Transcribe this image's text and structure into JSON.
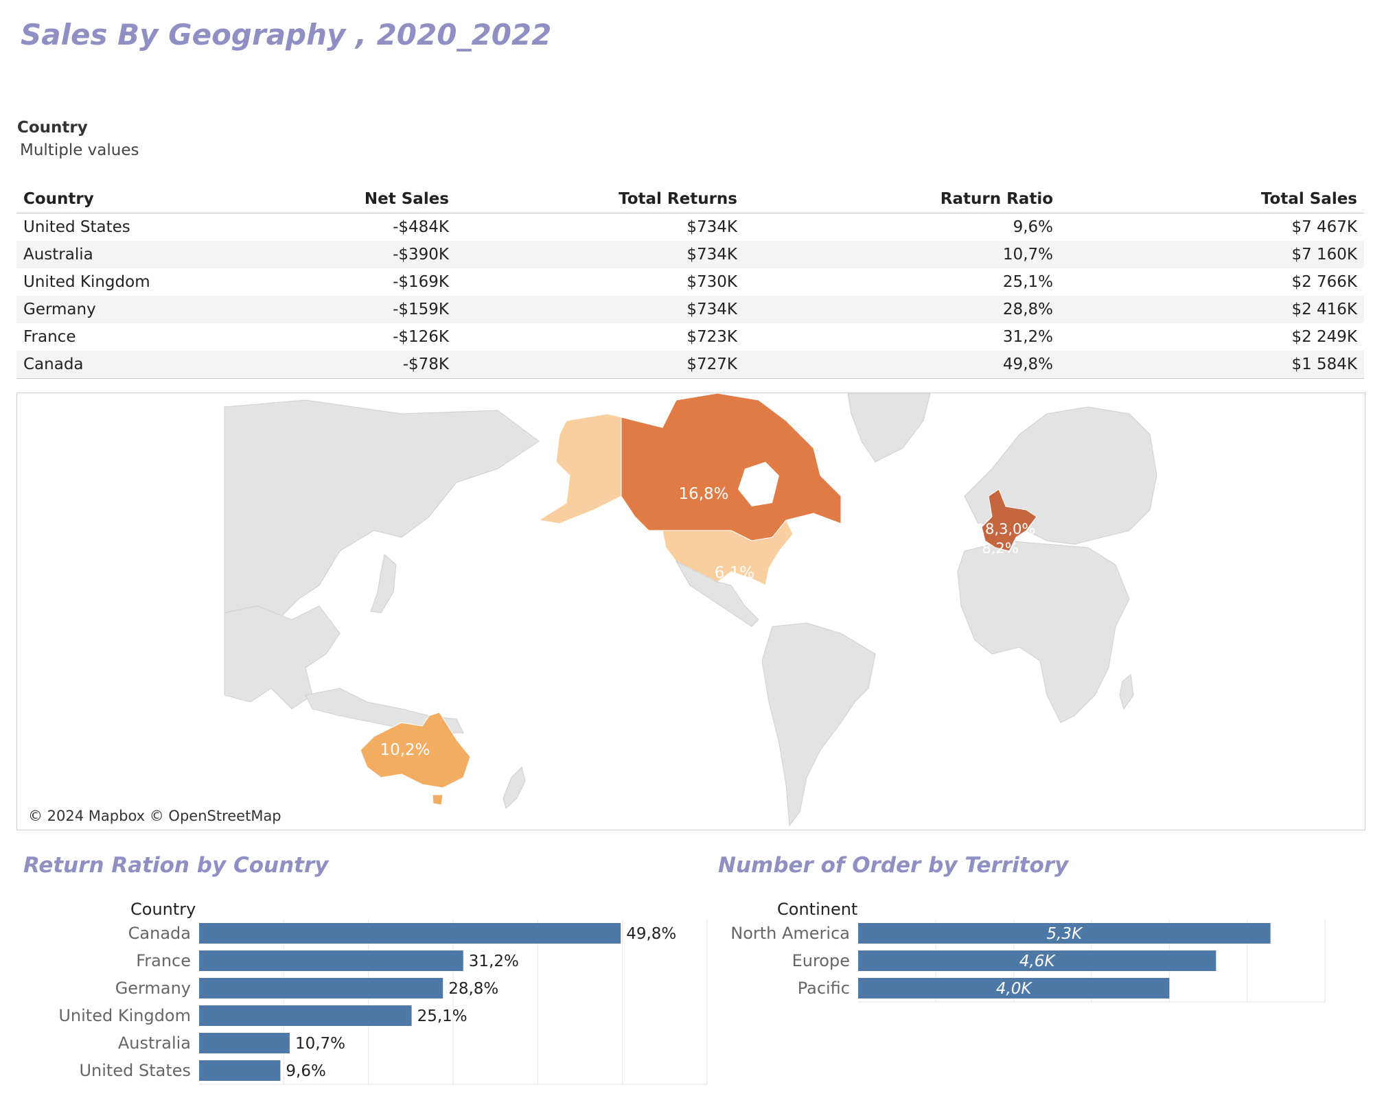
{
  "page": {
    "title": "Sales By Geography , 2020_2022",
    "filter": {
      "label": "Country",
      "value": "Multiple values"
    }
  },
  "sales_table": {
    "columns": [
      "Country",
      "Net Sales",
      "Total Returns",
      "Raturn Ratio",
      "Total Sales"
    ],
    "rows": [
      [
        "United States",
        "-$484K",
        "$734K",
        "9,6%",
        "$7 467K"
      ],
      [
        "Australia",
        "-$390K",
        "$734K",
        "10,7%",
        "$7 160K"
      ],
      [
        "United Kingdom",
        "-$169K",
        "$730K",
        "25,1%",
        "$2 766K"
      ],
      [
        "Germany",
        "-$159K",
        "$734K",
        "28,8%",
        "$2 416K"
      ],
      [
        "France",
        "-$126K",
        "$723K",
        "31,2%",
        "$2 249K"
      ],
      [
        "Canada",
        "-$78K",
        "$727K",
        "49,8%",
        "$1 584K"
      ]
    ]
  },
  "map": {
    "attribution": "© 2024 Mapbox © OpenStreetMap",
    "labels": {
      "canada": "16,8%",
      "united_states": "6,1%",
      "australia": "10,2%",
      "europe_1": "18,3,0%",
      "europe_2": "8,2%"
    },
    "colors": {
      "land": "#e3e3e3",
      "canada": "#e07b45",
      "alaska": "#f9cfa0",
      "united_states": "#f9cfa0",
      "australia": "#f2ad63",
      "europe": "#c4663f"
    }
  },
  "return_ratio_chart": {
    "title": "Return Ration by Country",
    "axis_header": "Country",
    "bar_color": "#4e79a7"
  },
  "orders_chart": {
    "title": "Number of Order by Territory",
    "axis_header": "Continent",
    "bar_color": "#4e79a7"
  },
  "chart_data": [
    {
      "type": "bar",
      "orientation": "horizontal",
      "title": "Return Ration by Country",
      "ylabel": "Country",
      "categories": [
        "Canada",
        "France",
        "Germany",
        "United Kingdom",
        "Australia",
        "United States"
      ],
      "values": [
        49.8,
        31.2,
        28.8,
        25.1,
        10.7,
        9.6
      ],
      "data_labels": [
        "49,8%",
        "31,2%",
        "28,8%",
        "25,1%",
        "10,7%",
        "9,6%"
      ],
      "xlim": [
        0,
        60
      ],
      "grid": true
    },
    {
      "type": "bar",
      "orientation": "horizontal",
      "title": "Number of Order by Territory",
      "ylabel": "Continent",
      "categories": [
        "North America",
        "Europe",
        "Pacific"
      ],
      "values": [
        5300,
        4600,
        4000
      ],
      "data_labels": [
        "5,3K",
        "4,6K",
        "4,0K"
      ],
      "xlim": [
        0,
        6000
      ],
      "grid": true
    }
  ]
}
